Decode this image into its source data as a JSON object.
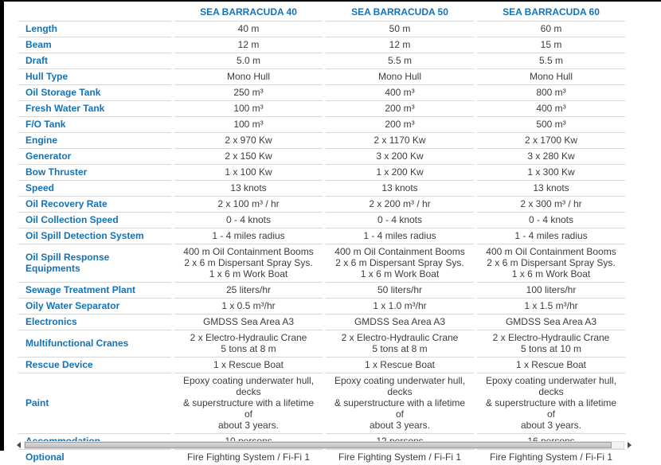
{
  "colors": {
    "accent_blue": "#1472B9",
    "value_text": "#3D3D3D",
    "row_line": "#D8D8D8",
    "frame_border": "#000000"
  },
  "icons": {
    "scroll_left": "left-triangle",
    "scroll_right": "right-triangle"
  },
  "table": {
    "columns": [
      "SEA BARRACUDA 40",
      "SEA BARRACUDA 50",
      "SEA BARRACUDA 60"
    ],
    "rows": [
      {
        "label": "Length",
        "values": [
          "40 m",
          "50 m",
          "60 m"
        ]
      },
      {
        "label": "Beam",
        "values": [
          "12 m",
          "12 m",
          "15 m"
        ]
      },
      {
        "label": "Draft",
        "values": [
          "5.0 m",
          "5.5 m",
          "5.5 m"
        ]
      },
      {
        "label": "Hull Type",
        "values": [
          "Mono Hull",
          "Mono Hull",
          "Mono Hull"
        ]
      },
      {
        "label": "Oil Storage Tank",
        "values": [
          "250 m³",
          "400 m³",
          "800 m³"
        ]
      },
      {
        "label": "Fresh Water Tank",
        "values": [
          "100 m³",
          "200 m³",
          "400 m³"
        ]
      },
      {
        "label": "F/O Tank",
        "values": [
          "100 m³",
          "200 m³",
          "500 m³"
        ]
      },
      {
        "label": "Engine",
        "values": [
          "2 x 970 Kw",
          "2 x 1170 Kw",
          "2 x 1700 Kw"
        ]
      },
      {
        "label": "Generator",
        "values": [
          "2 x 150 Kw",
          "3 x 200 Kw",
          "3 x 280 Kw"
        ]
      },
      {
        "label": "Bow Thruster",
        "values": [
          "1 x 100 Kw",
          "1 x 200 Kw",
          "1 x 300 Kw"
        ]
      },
      {
        "label": "Speed",
        "values": [
          "13 knots",
          "13 knots",
          "13 knots"
        ]
      },
      {
        "label": "Oil Recovery Rate",
        "values": [
          "2 x 100 m³ / hr",
          "2 x 200 m³ / hr",
          "2 x 300 m³ / hr"
        ]
      },
      {
        "label": "Oil Collection Speed",
        "values": [
          "0 - 4 knots",
          "0 - 4 knots",
          "0 - 4 knots"
        ]
      },
      {
        "label": "Oil Spill Detection System",
        "values": [
          "1 - 4 miles radius",
          "1 - 4 miles radius",
          "1 - 4 miles radius"
        ]
      },
      {
        "label": "Oil Spill Response Equipments",
        "values": [
          "400 m Oil Containment Booms\n2 x 6 m Dispersant Spray Sys.\n1 x 6 m Work Boat",
          "400 m Oil Containment Booms\n2 x 6 m Dispersant Spray Sys.\n1 x 6 m Work Boat",
          "400 m Oil Containment Booms\n2 x 6 m Dispersant Spray Sys.\n1 x 6 m Work Boat"
        ]
      },
      {
        "label": "Sewage Treatment Plant",
        "values": [
          "25 liters/hr",
          "50 liters/hr",
          "100 liters/hr"
        ]
      },
      {
        "label": "Oily Water Separator",
        "values": [
          "1 x 0.5 m³/hr",
          "1 x 1.0 m³/hr",
          "1 x 1.5 m³/hr"
        ]
      },
      {
        "label": "Electronics",
        "values": [
          "GMDSS Sea Area A3",
          "GMDSS Sea Area A3",
          "GMDSS Sea Area A3"
        ]
      },
      {
        "label": "Multifunctional Cranes",
        "values": [
          "2 x Electro-Hydraulic Crane\n5 tons at 8 m",
          "2 x Electro-Hydraulic Crane\n5 tons at 8 m",
          "2 x Electro-Hydraulic Crane\n5 tons at 10 m"
        ]
      },
      {
        "label": "Rescue Device",
        "values": [
          "1 x Rescue Boat",
          "1 x Rescue Boat",
          "1 x Rescue Boat"
        ]
      },
      {
        "label": "Paint",
        "values": [
          "Epoxy coating underwater hull, decks\n& superstructure with a lifetime of\nabout 3 years.",
          "Epoxy coating underwater hull, decks\n& superstructure with a lifetime of\nabout 3 years.",
          "Epoxy coating underwater hull, decks\n& superstructure with a lifetime of\nabout 3 years."
        ]
      },
      {
        "label": "Accommodation",
        "values": [
          "10 persons",
          "12 persons",
          "16 persons"
        ]
      },
      {
        "label": "Optional",
        "values": [
          "Fire Fighting System / Fi-Fi 1",
          "Fire Fighting System / Fi-Fi 1",
          "Fire Fighting System / Fi-Fi 1"
        ]
      }
    ]
  }
}
